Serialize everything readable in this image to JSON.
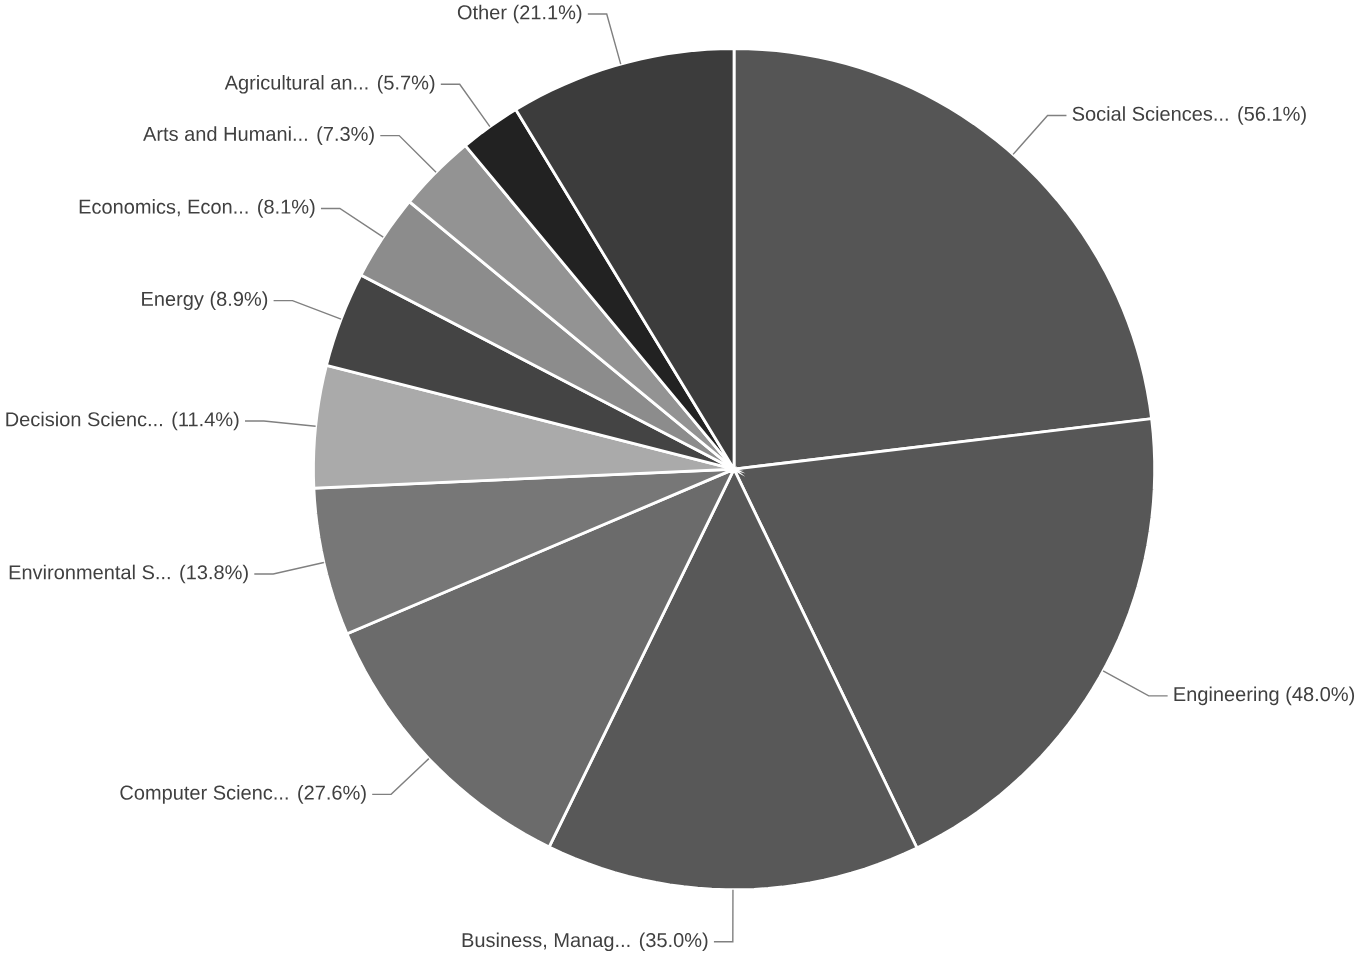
{
  "chart_data": {
    "type": "pie",
    "categories": [
      "Social Sciences...",
      "Engineering",
      "Business, Manag...",
      "Computer Scienc...",
      "Environmental S...",
      "Decision Scienc...",
      "Energy",
      "Economics, Econ...",
      "Arts and Humani...",
      "Agricultural an...",
      "Other"
    ],
    "values": [
      56.1,
      48.0,
      35.0,
      27.6,
      13.8,
      11.4,
      8.9,
      8.1,
      7.3,
      5.7,
      21.1
    ],
    "value_labels": [
      "(56.1%)",
      "(48.0%)",
      "(35.0%)",
      "(27.6%)",
      "(13.8%)",
      "(11.4%)",
      "(8.9%)",
      "(8.1%)",
      "(7.3%)",
      "(5.7%)",
      "(21.1%)"
    ],
    "colors": [
      "#555555",
      "#575757",
      "#585858",
      "#6b6b6b",
      "#777777",
      "#aaaaaa",
      "#444444",
      "#8c8c8c",
      "#939393",
      "#222222",
      "#3c3c3c"
    ]
  }
}
